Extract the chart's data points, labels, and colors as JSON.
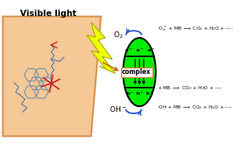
{
  "bg_color": "#ffffff",
  "panel_bg": "#f5c896",
  "panel_border": "#d8904a",
  "lightning_color": "#eeff00",
  "lightning_edge": "#aaaa00",
  "ellipse_color": "#00ee00",
  "ellipse_edge": "#000000",
  "complex_box_color": "#ffffff",
  "complex_box_edge": "#cc8844",
  "visible_light_text": "Visible light",
  "o2_label": "O$_2$",
  "oh_label": "OH$^-$",
  "reaction_top": "$\\cdot$O$_2^-$ + MB $\\longrightarrow$ CO$_2$ + H$_2$O + ----",
  "reaction_mid": "+ MB $\\longrightarrow$ CO$_2$ + H$_2$O + ----",
  "reaction_bot": "$\\cdot$OH + MB $\\longrightarrow$ CO$_2$ + H$_2$O + ----",
  "complex_label": "complex",
  "e_label": "e$^-$  e$^-$  e$^-$",
  "h_label": "h$^+$ h$^+$ h$^+$",
  "arrow_color": "#2255cc",
  "col_blue": "#4466aa",
  "col_red": "#cc2222",
  "col_gray": "#6688aa"
}
